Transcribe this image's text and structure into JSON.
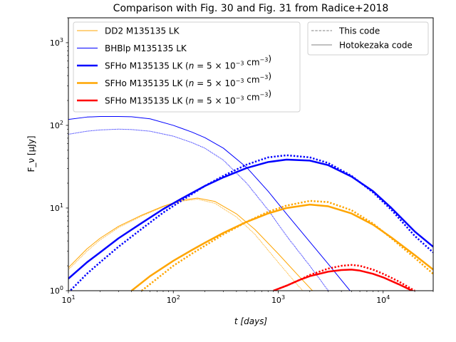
{
  "chart_data": {
    "type": "line",
    "title": "Comparison with Fig. 30 and Fig. 31 from Radice+2018",
    "xlabel": "t [days]",
    "ylabel": "F_ν [μJy]",
    "xscale": "log",
    "yscale": "log",
    "xlim": [
      10,
      30000
    ],
    "ylim": [
      1,
      2000
    ],
    "x_ticks": [
      {
        "value": 10,
        "base": "10",
        "exp": "1"
      },
      {
        "value": 100,
        "base": "10",
        "exp": "2"
      },
      {
        "value": 1000,
        "base": "10",
        "exp": "3"
      },
      {
        "value": 10000,
        "base": "10",
        "exp": "4"
      }
    ],
    "y_ticks": [
      {
        "value": 1,
        "base": "10",
        "exp": "0"
      },
      {
        "value": 10,
        "base": "10",
        "exp": "1"
      },
      {
        "value": 100,
        "base": "10",
        "exp": "2"
      },
      {
        "value": 1000,
        "base": "10",
        "exp": "3"
      }
    ],
    "legend_models": {
      "placement": "upper-left",
      "entries": [
        {
          "text": "DD2 M135135 LK",
          "color": "#ffa500",
          "width": 1
        },
        {
          "text": "BHBlp M135135 LK",
          "color": "#0000ff",
          "width": 1
        },
        {
          "text": "SFHo M135135 LK (n = 5 × 10⁻³ cm⁻³)",
          "color": "#0000ff",
          "width": 2.5
        },
        {
          "text": "SFHo M135135 LK (n = 5 × 10⁻³ cm⁻³)",
          "color": "#ffa500",
          "width": 2.5
        },
        {
          "text": "SFHo M135135 LK (n = 5 × 10⁻³ cm⁻³)",
          "color": "#ff0000",
          "width": 2.5
        }
      ]
    },
    "legend_styles": {
      "placement": "upper-right",
      "entries": [
        {
          "text": "This code",
          "style": "dashed"
        },
        {
          "text": "Hotokezaka code",
          "style": "solid"
        }
      ]
    },
    "series": [
      {
        "color": "#ffa500",
        "width": 1,
        "style": "solid",
        "x": [
          10,
          15,
          20,
          30,
          50,
          80,
          120,
          170,
          250,
          400,
          600,
          1000,
          1500,
          2500
        ],
        "y": [
          1.9,
          3.2,
          4.3,
          6.0,
          8.2,
          10.5,
          12.4,
          13.2,
          12.0,
          8.5,
          5.5,
          2.8,
          1.6,
          0.8
        ]
      },
      {
        "color": "#ffa500",
        "width": 1,
        "style": "dotted",
        "x": [
          10,
          15,
          20,
          30,
          50,
          80,
          120,
          170,
          250,
          400,
          600,
          1000,
          1500,
          2500
        ],
        "y": [
          1.8,
          3.0,
          4.1,
          5.8,
          8.0,
          10.3,
          12.1,
          12.8,
          11.4,
          7.8,
          4.8,
          2.2,
          1.2,
          0.6
        ]
      },
      {
        "color": "#0000ff",
        "width": 1,
        "style": "solid",
        "x": [
          10,
          15,
          20,
          30,
          40,
          60,
          100,
          150,
          200,
          300,
          500,
          800,
          1200,
          2000,
          3000,
          5000,
          7000
        ],
        "y": [
          118,
          126,
          128,
          128,
          127,
          120,
          100,
          83,
          71,
          53,
          31,
          16,
          8.5,
          3.9,
          2.1,
          0.95,
          0.55
        ]
      },
      {
        "color": "#0000ff",
        "width": 1,
        "style": "dotted",
        "x": [
          10,
          15,
          20,
          30,
          40,
          60,
          100,
          150,
          200,
          300,
          500,
          800,
          1200,
          2000,
          3000,
          5000
        ],
        "y": [
          78,
          85,
          88,
          90,
          89,
          85,
          74,
          62,
          53,
          38,
          20,
          9.5,
          4.6,
          2.0,
          1.0,
          0.45
        ]
      },
      {
        "color": "#0000ff",
        "width": 2.5,
        "style": "solid",
        "x": [
          10,
          15,
          20,
          30,
          50,
          80,
          120,
          200,
          300,
          500,
          800,
          1200,
          2000,
          3000,
          5000,
          8000,
          12000,
          20000,
          30000
        ],
        "y": [
          1.4,
          2.2,
          2.9,
          4.3,
          6.6,
          9.7,
          13.0,
          18.5,
          23.5,
          30.5,
          36.0,
          38.5,
          37.5,
          33.0,
          24.0,
          16.0,
          10.0,
          5.2,
          3.4
        ]
      },
      {
        "color": "#0000ff",
        "width": 2.5,
        "style": "dotted",
        "x": [
          10,
          15,
          20,
          30,
          50,
          80,
          120,
          200,
          300,
          500,
          800,
          1200,
          2000,
          3000,
          5000,
          8000,
          12000,
          20000,
          30000
        ],
        "y": [
          0.95,
          1.6,
          2.2,
          3.4,
          5.6,
          8.8,
          12.3,
          18.5,
          24.5,
          33.5,
          41.0,
          43.5,
          41.0,
          35.0,
          24.5,
          15.5,
          9.5,
          4.6,
          2.9
        ]
      },
      {
        "color": "#ffa500",
        "width": 2.5,
        "style": "solid",
        "x": [
          40,
          60,
          100,
          150,
          200,
          300,
          500,
          800,
          1200,
          2000,
          3000,
          5000,
          8000,
          12000,
          20000,
          30000
        ],
        "y": [
          1.0,
          1.5,
          2.3,
          3.1,
          3.8,
          5.0,
          6.8,
          8.6,
          10.0,
          11.0,
          10.5,
          8.6,
          6.3,
          4.4,
          2.7,
          1.8
        ]
      },
      {
        "color": "#ffa500",
        "width": 2.5,
        "style": "dotted",
        "x": [
          50,
          80,
          100,
          150,
          200,
          300,
          500,
          800,
          1200,
          2000,
          3000,
          5000,
          8000,
          12000,
          20000,
          30000
        ],
        "y": [
          1.0,
          1.6,
          2.0,
          2.8,
          3.5,
          4.8,
          6.8,
          9.0,
          10.7,
          12.2,
          11.8,
          9.4,
          6.5,
          4.3,
          2.5,
          1.6
        ]
      },
      {
        "color": "#ff0000",
        "width": 2.5,
        "style": "solid",
        "x": [
          900,
          1200,
          1600,
          2000,
          3000,
          4000,
          5000,
          6000,
          8000,
          10000,
          14000,
          18000,
          20000
        ],
        "y": [
          1.0,
          1.15,
          1.35,
          1.5,
          1.7,
          1.78,
          1.8,
          1.75,
          1.6,
          1.45,
          1.2,
          1.03,
          0.97
        ]
      },
      {
        "color": "#ff0000",
        "width": 2.5,
        "style": "dotted",
        "x": [
          900,
          1200,
          1600,
          2000,
          3000,
          4000,
          5000,
          6000,
          8000,
          10000,
          14000,
          18000,
          20000
        ],
        "y": [
          1.0,
          1.15,
          1.35,
          1.55,
          1.85,
          2.0,
          2.05,
          2.0,
          1.8,
          1.6,
          1.3,
          1.08,
          1.0
        ]
      }
    ]
  }
}
